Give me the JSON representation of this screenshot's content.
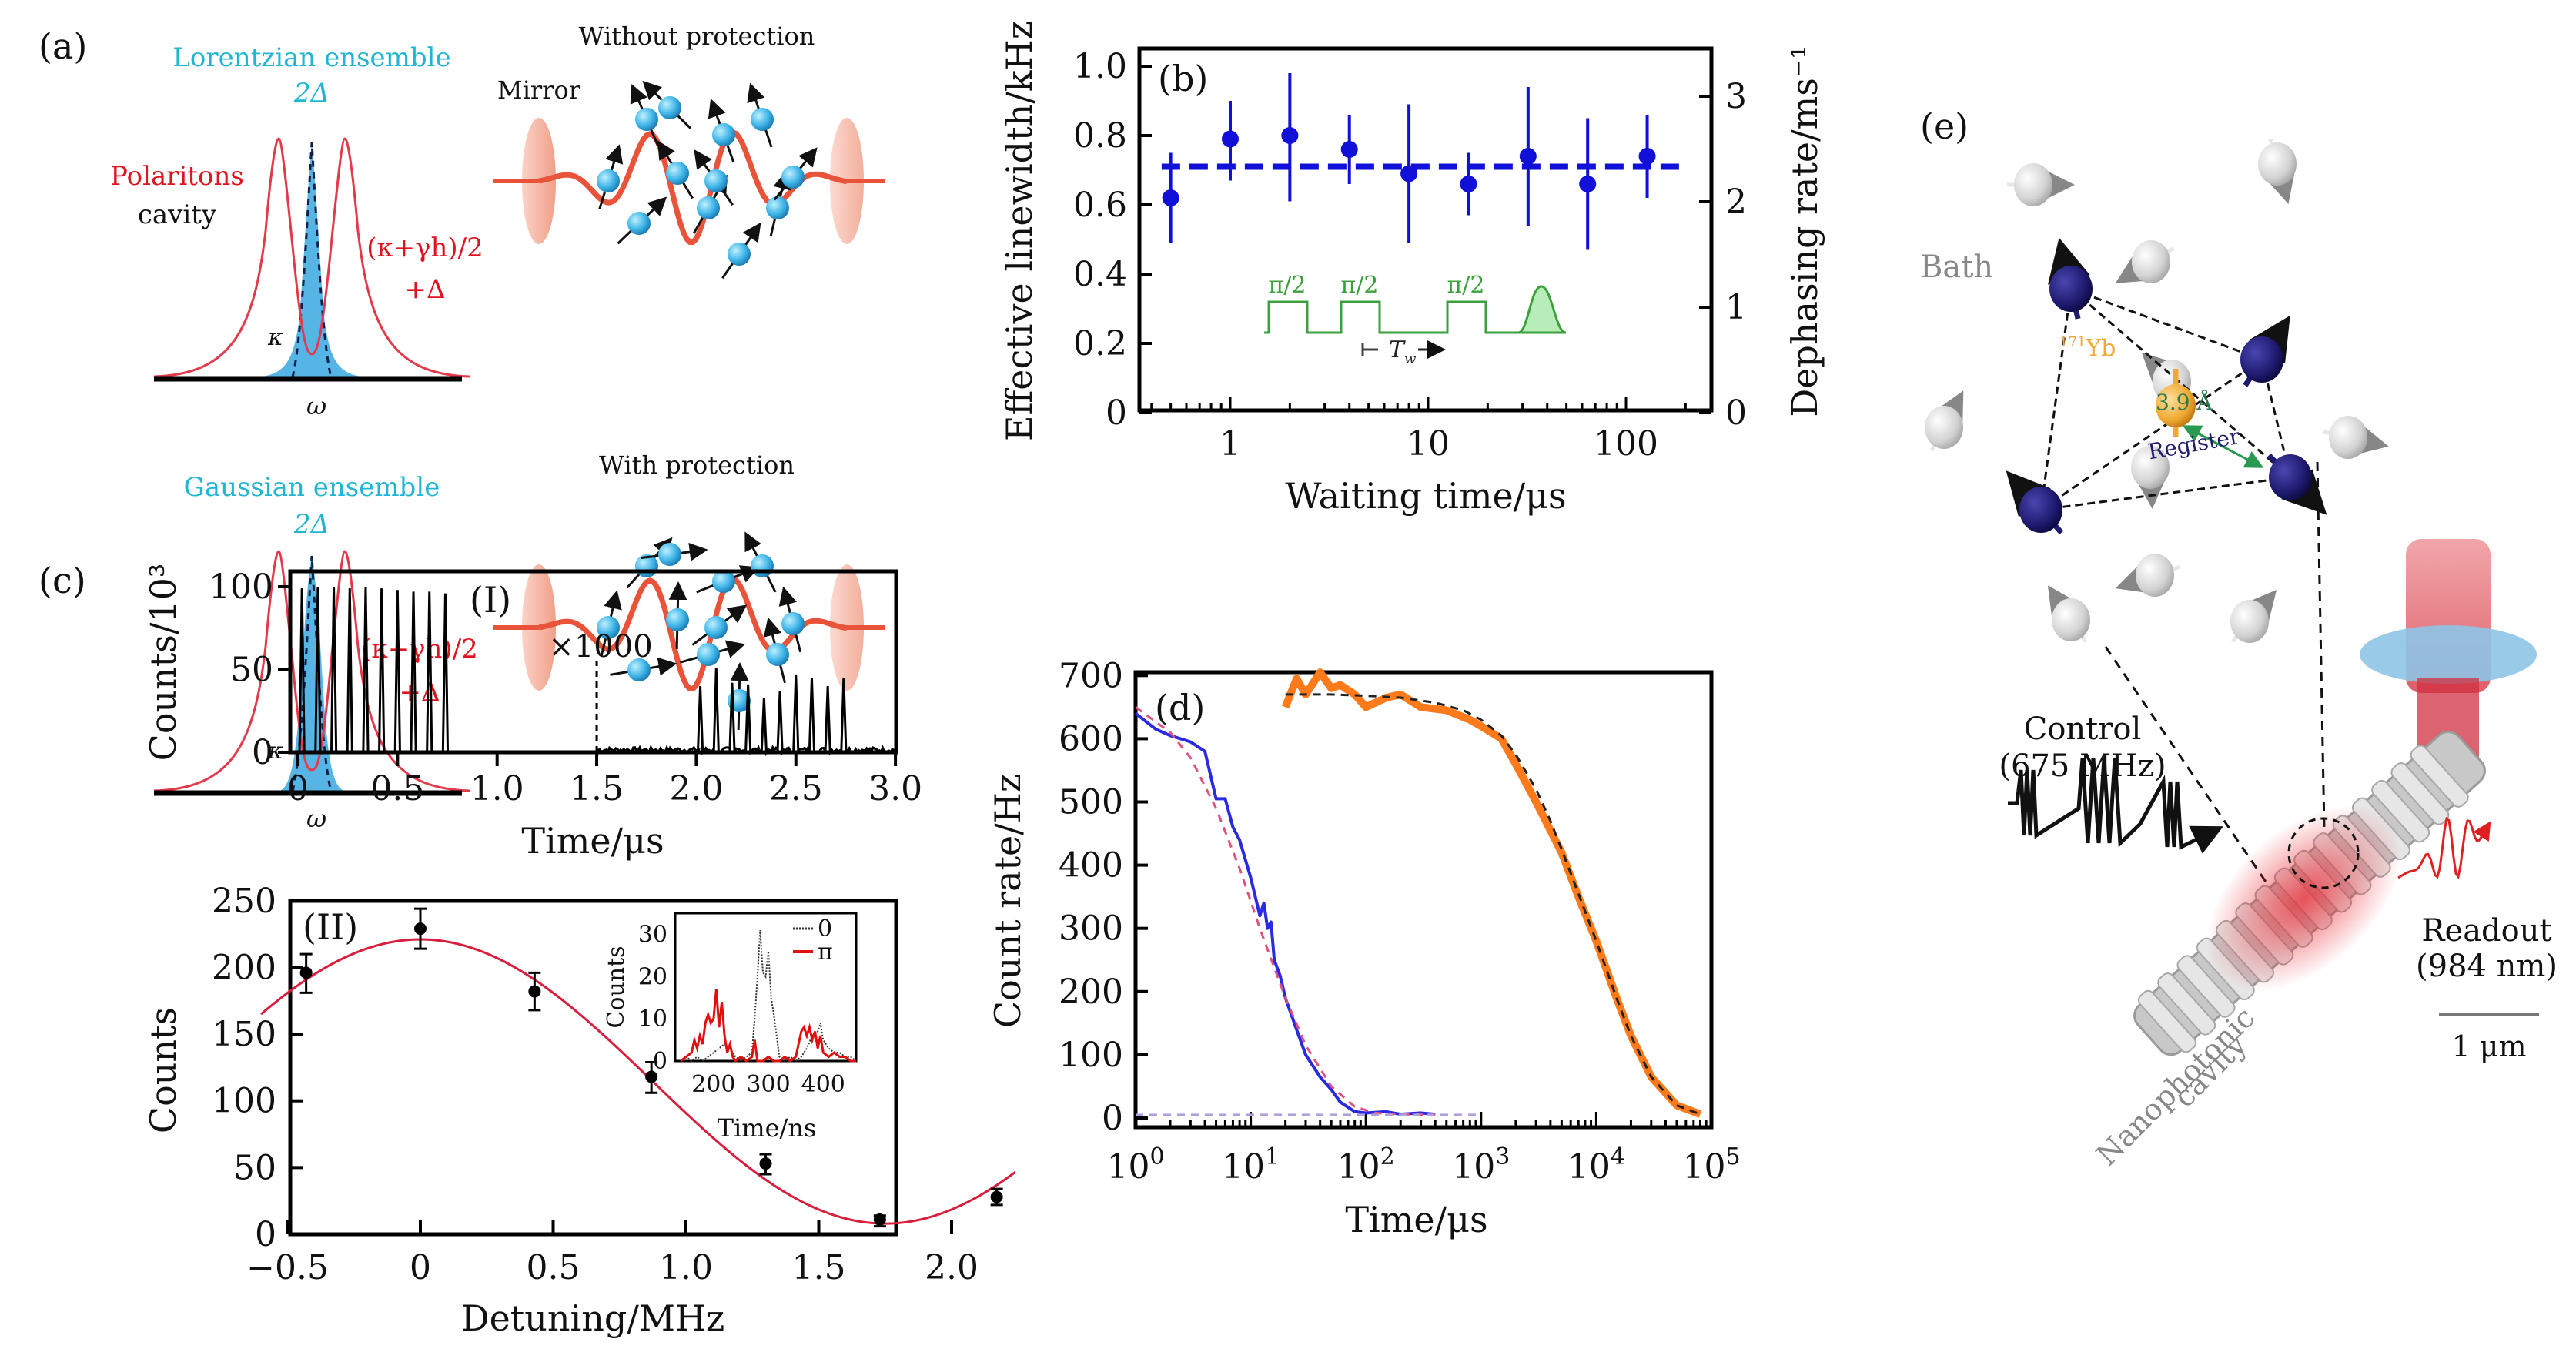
{
  "figure": {
    "panels": {
      "a": {
        "label": "(a)",
        "top": {
          "ensemble_title": "Lorentzian ensemble",
          "width_label": "2Δ",
          "polaritons_label": "Polaritons",
          "cavity_label": "cavity",
          "kappa_label": "κ",
          "omega_label": "ω",
          "splitting_label_1": "(κ+γh)/2",
          "splitting_label_2": "+Δ",
          "scene_title": "Without protection",
          "mirror_label": "Mirror"
        },
        "bottom": {
          "ensemble_title": "Gaussian ensemble",
          "width_label": "2Δ",
          "kappa_label": "κ",
          "omega_label": "ω",
          "splitting_label_1": "(κ+γh)/2",
          "splitting_label_2": "+Δ",
          "scene_title": "With protection"
        },
        "colors": {
          "cyan_text": "#1fb6d4",
          "red_text": "#e0141e",
          "fill_blue": "#3aa8e0",
          "wave_red": "#e8533a",
          "mirror": "#f0a08a",
          "spin": "#3fb5e8"
        }
      },
      "e": {
        "label": "(e)",
        "bath_label": "Bath",
        "yb_label": "171Yb",
        "yb_mass": "171",
        "yb_symbol": "Yb",
        "distance_label": "3.9 Å",
        "register_label": "Register",
        "control_label_1": "Control",
        "control_label_2": "(675 MHz)",
        "readout_label_1": "Readout",
        "readout_label_2": "(984 nm)",
        "cavity_label_1": "Nanophotonic",
        "cavity_label_2": "cavity",
        "scale_bar_label": "1 μm",
        "colors": {
          "register": "#1e1a6e",
          "yb": "#f0a830",
          "bath": "#cfcfcf",
          "distance": "#2a9a50",
          "readout": "#e02020"
        }
      }
    }
  },
  "chart_data": [
    {
      "id": "b",
      "type": "scatter",
      "panel_label": "(b)",
      "xlabel": "Waiting time/μs",
      "ylabel": "Effective linewidth/kHz",
      "ylabel_right": "Dephasing rate/ms⁻¹",
      "xscale": "log",
      "xlim": [
        0.35,
        270
      ],
      "ylim": [
        0,
        1.05
      ],
      "ylim_right": [
        0,
        3.3
      ],
      "x_ticks": [
        1,
        10,
        100
      ],
      "x_tick_labels": [
        "1",
        "10",
        "100"
      ],
      "y_ticks": [
        0,
        0.2,
        0.4,
        0.6,
        0.8,
        1.0
      ],
      "y_tick_labels": [
        "0",
        "0.2",
        "0.4",
        "0.6",
        "0.8",
        "1.0"
      ],
      "y_right_ticks": [
        0,
        1,
        2,
        3
      ],
      "y_right_tick_labels": [
        "0",
        "1",
        "2",
        "3"
      ],
      "series": [
        {
          "name": "linewidth",
          "color": "#1010d8",
          "x": [
            0.5,
            1,
            2,
            4,
            8,
            16,
            32,
            64,
            128
          ],
          "y": [
            0.62,
            0.79,
            0.8,
            0.76,
            0.69,
            0.66,
            0.74,
            0.66,
            0.74
          ],
          "err_low": [
            0.49,
            0.67,
            0.61,
            0.66,
            0.49,
            0.57,
            0.54,
            0.47,
            0.62
          ],
          "err_high": [
            0.75,
            0.9,
            0.98,
            0.86,
            0.89,
            0.75,
            0.94,
            0.85,
            0.86
          ]
        }
      ],
      "mean_line": {
        "y": 0.71,
        "x_range": [
          0.45,
          200
        ],
        "style": "dashed",
        "color": "#1010d8"
      },
      "inset": {
        "pulse_labels": [
          "π/2",
          "π/2",
          "π/2"
        ],
        "wait_label": "T",
        "wait_subscript": "w",
        "color": "#3ca03c"
      }
    },
    {
      "id": "c-I",
      "type": "line",
      "panel_label": "(c)",
      "sub_label": "(I)",
      "xlabel": "Time/μs",
      "ylabel": "Counts/10³",
      "xlim": [
        -0.03,
        3.0
      ],
      "ylim": [
        0,
        110
      ],
      "x_ticks": [
        0,
        0.5,
        1.0,
        1.5,
        2.0,
        2.5,
        3.0
      ],
      "x_tick_labels": [
        "0",
        "0.5",
        "1.0",
        "1.5",
        "2.0",
        "2.5",
        "3.0"
      ],
      "y_ticks": [
        0,
        50,
        100
      ],
      "y_tick_labels": [
        "0",
        "50",
        "100"
      ],
      "annotation": "×1000",
      "divider_x": 1.5,
      "series": [
        {
          "name": "pulses",
          "color": "#000000",
          "peak_times": [
            0.02,
            0.1,
            0.18,
            0.26,
            0.34,
            0.42,
            0.5,
            0.58,
            0.66,
            0.74
          ],
          "peak_heights": [
            99,
            100,
            100,
            99,
            100,
            99,
            98,
            97,
            97,
            96
          ]
        },
        {
          "name": "echo ×1000",
          "color": "#000000",
          "peak_times": [
            2.02,
            2.1,
            2.18,
            2.26,
            2.34,
            2.42,
            2.5,
            2.58,
            2.66,
            2.74
          ],
          "peak_heights": [
            40,
            51,
            42,
            41,
            33,
            37,
            47,
            45,
            40,
            45
          ],
          "noise_level": 3
        }
      ]
    },
    {
      "id": "c-II",
      "type": "scatter",
      "sub_label": "(II)",
      "xlabel": "Detuning/MHz",
      "ylabel": "Counts",
      "xlim": [
        -0.6,
        2.25
      ],
      "ylim": [
        0,
        250
      ],
      "x_ticks": [
        -0.5,
        0,
        0.5,
        1.0,
        1.5,
        2.0
      ],
      "x_tick_labels": [
        "−0.5",
        "0",
        "0.5",
        "1.0",
        "1.5",
        "2.0"
      ],
      "y_ticks": [
        0,
        50,
        100,
        150,
        200,
        250
      ],
      "y_tick_labels": [
        "0",
        "50",
        "100",
        "150",
        "200",
        "250"
      ],
      "series": [
        {
          "name": "data",
          "color": "#000000",
          "x": [
            -0.43,
            0,
            0.43,
            0.87,
            1.3,
            1.73,
            2.17
          ],
          "y": [
            196,
            229,
            182,
            118,
            53,
            11,
            28
          ],
          "err_low": [
            181,
            214,
            168,
            106,
            45,
            6,
            22
          ],
          "err_high": [
            210,
            244,
            196,
            129,
            60,
            14,
            34
          ]
        },
        {
          "name": "fit",
          "color": "#d81e3c",
          "type": "cosine",
          "amplitude": 106.5,
          "offset": 114.5,
          "period": 3.5,
          "phase_x": 0
        }
      ],
      "inset": {
        "xlabel": "Time/ns",
        "ylabel": "Counts",
        "xlim": [
          130,
          460
        ],
        "ylim": [
          0,
          35
        ],
        "x_ticks": [
          200,
          300,
          400
        ],
        "x_tick_labels": [
          "200",
          "300",
          "400"
        ],
        "y_ticks": [
          0,
          10,
          20,
          30
        ],
        "y_tick_labels": [
          "0",
          "10",
          "20",
          "30"
        ],
        "legend": [
          {
            "label": "0",
            "color": "#333333",
            "style": "dotted"
          },
          {
            "label": "π",
            "color": "#e01010",
            "style": "solid"
          }
        ],
        "series": [
          {
            "name": "0",
            "color": "#333333",
            "x": [
              140,
              150,
              160,
              170,
              180,
              190,
              200,
              210,
              220,
              230,
              240,
              250,
              260,
              270,
              275,
              280,
              285,
              290,
              295,
              300,
              305,
              310,
              315,
              320,
              330,
              340,
              350,
              360,
              370,
              380,
              390,
              395,
              400,
              410,
              420,
              430,
              440,
              450,
              460
            ],
            "y": [
              0,
              1,
              0,
              1,
              0,
              1,
              2,
              3,
              4,
              3,
              1,
              0,
              1,
              2,
              10,
              20,
              31,
              21,
              20,
              26,
              15,
              11,
              6,
              1,
              0,
              1,
              0,
              1,
              3,
              6,
              7,
              9,
              5,
              3,
              2,
              2,
              1,
              1,
              0
            ]
          },
          {
            "name": "π",
            "color": "#e01010",
            "x": [
              140,
              150,
              160,
              165,
              170,
              175,
              180,
              185,
              190,
              195,
              200,
              205,
              210,
              215,
              220,
              225,
              230,
              235,
              240,
              250,
              260,
              270,
              275,
              280,
              290,
              300,
              310,
              320,
              330,
              340,
              350,
              360,
              365,
              370,
              375,
              380,
              385,
              390,
              395,
              400,
              410,
              420,
              430,
              440,
              450,
              460
            ],
            "y": [
              0,
              1,
              2,
              5,
              3,
              6,
              4,
              9,
              11,
              9,
              10,
              17,
              8,
              14,
              6,
              2,
              4,
              1,
              0,
              1,
              0,
              1,
              5,
              0,
              0,
              1,
              0,
              0,
              1,
              0,
              1,
              7,
              8,
              6,
              8,
              5,
              7,
              3,
              6,
              2,
              1,
              2,
              1,
              1,
              0,
              0
            ]
          }
        ]
      }
    },
    {
      "id": "d",
      "type": "line",
      "panel_label": "(d)",
      "xlabel": "Time/μs",
      "ylabel": "Count rate/Hz",
      "xscale": "log",
      "xlim": [
        1,
        100000
      ],
      "ylim": [
        -15,
        720
      ],
      "x_ticks": [
        1,
        10,
        100,
        1000,
        10000,
        100000
      ],
      "x_tick_labels": [
        "10^0",
        "10^1",
        "10^2",
        "10^3",
        "10^4",
        "10^5"
      ],
      "y_ticks": [
        0,
        100,
        200,
        300,
        400,
        500,
        600,
        700
      ],
      "y_tick_labels": [
        "0",
        "100",
        "200",
        "300",
        "400",
        "500",
        "600",
        "700"
      ],
      "series": [
        {
          "name": "short decay data",
          "color": "#2a2ae0",
          "x": [
            1,
            1.5,
            2,
            3,
            4,
            5,
            6,
            7,
            8,
            10,
            12,
            13,
            14,
            15,
            16,
            18,
            20,
            25,
            30,
            40,
            50,
            60,
            80,
            100,
            150,
            200,
            300,
            400
          ],
          "y": [
            640,
            615,
            605,
            595,
            580,
            505,
            505,
            460,
            440,
            380,
            320,
            340,
            300,
            310,
            250,
            225,
            190,
            140,
            100,
            65,
            45,
            25,
            10,
            8,
            10,
            6,
            8,
            6
          ]
        },
        {
          "name": "short decay fit",
          "color": "#e05080",
          "style": "dashed",
          "x": [
            1,
            2,
            3,
            5,
            8,
            12,
            20,
            30,
            50,
            80,
            120,
            200,
            400
          ],
          "y": [
            650,
            610,
            570,
            490,
            395,
            300,
            190,
            115,
            50,
            18,
            8,
            6,
            5
          ]
        },
        {
          "name": "short baseline",
          "color": "#b0a0e0",
          "style": "dashed",
          "x": [
            1,
            1000
          ],
          "y": [
            5,
            5
          ]
        },
        {
          "name": "long decay data",
          "color": "#ff7a1a",
          "x": [
            20,
            25,
            30,
            40,
            50,
            60,
            80,
            100,
            150,
            200,
            300,
            500,
            800,
            1000,
            1500,
            2000,
            3000,
            4000,
            5000,
            7000,
            10000,
            15000,
            20000,
            30000,
            50000,
            80000
          ],
          "y": [
            650,
            695,
            670,
            705,
            680,
            685,
            670,
            650,
            665,
            670,
            650,
            645,
            630,
            620,
            600,
            560,
            500,
            455,
            420,
            350,
            280,
            190,
            130,
            65,
            20,
            6
          ]
        },
        {
          "name": "long decay fit",
          "color": "#222222",
          "style": "dashed",
          "x": [
            20,
            50,
            100,
            200,
            400,
            700,
            1000,
            1500,
            2000,
            3000,
            4000,
            5000,
            7000,
            10000,
            15000,
            20000,
            30000,
            50000,
            80000
          ],
          "y": [
            670,
            670,
            668,
            665,
            657,
            645,
            630,
            605,
            575,
            520,
            470,
            425,
            355,
            280,
            190,
            130,
            65,
            20,
            6
          ]
        }
      ]
    }
  ]
}
